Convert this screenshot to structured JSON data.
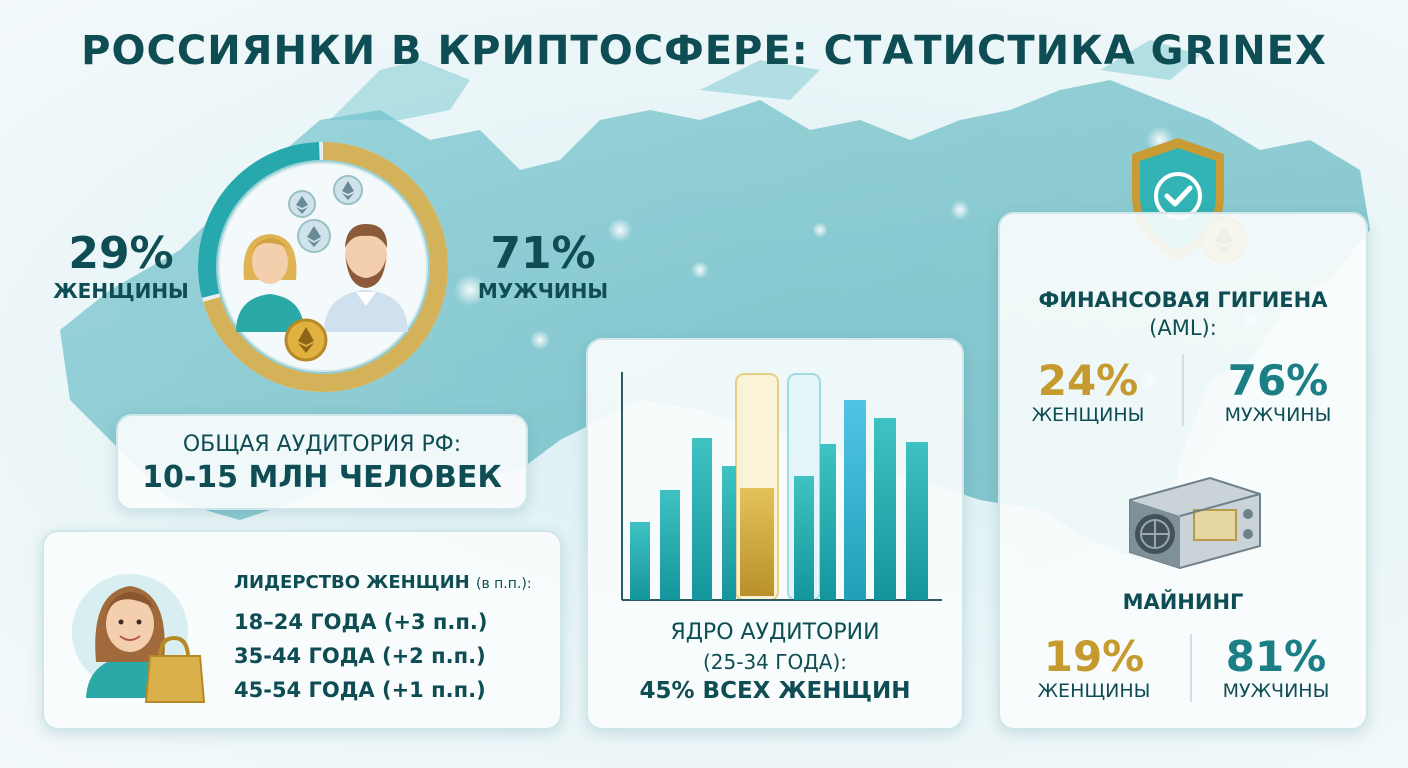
{
  "title": "РОССИЯНКИ В КРИПТОСФЕРЕ: СТАТИСТИКА GRINEX",
  "gender_split": {
    "women_pct": "29%",
    "women_label": "ЖЕНЩИНЫ",
    "men_pct": "71%",
    "men_label": "МУЖЧИНЫ",
    "women_fraction": 0.29,
    "men_fraction": 0.71
  },
  "audience": {
    "line1": "ОБЩАЯ АУДИТОРИЯ РФ:",
    "line2": "10-15 МЛН ЧЕЛОВЕК"
  },
  "leadership": {
    "heading": "ЛИДЕРСТВО ЖЕНЩИН",
    "heading_note": "(в п.п.):",
    "items": [
      "18–24 ГОДА (+3 п.п.)",
      "35-44 ГОДА (+2 п.п.)",
      "45-54 ГОДА (+1 п.п.)"
    ]
  },
  "core": {
    "line1": "ЯДРО АУДИТОРИИ",
    "line2": "(25-34 ГОДА):",
    "line3": "45% ВСЕХ ЖЕНЩИН"
  },
  "aml": {
    "heading1": "ФИНАНСОВАЯ ГИГИЕНА",
    "heading2": "(AML):",
    "women_pct": "24%",
    "women_label": "ЖЕНЩИНЫ",
    "men_pct": "76%",
    "men_label": "МУЖЧИНЫ"
  },
  "mining": {
    "heading": "МАЙНИНГ",
    "women_pct": "19%",
    "women_label": "ЖЕНЩИНЫ",
    "men_pct": "81%",
    "men_label": "МУЖЧИНЫ"
  },
  "colors": {
    "teal": "#1c9ea3",
    "gold": "#c9a032",
    "text": "#0e4d53"
  },
  "icons": [
    "ethereum-coin-icon",
    "shield-check-icon",
    "mining-rig-icon",
    "shopping-bag-icon",
    "woman-avatar-icon",
    "man-avatar-icon"
  ]
}
